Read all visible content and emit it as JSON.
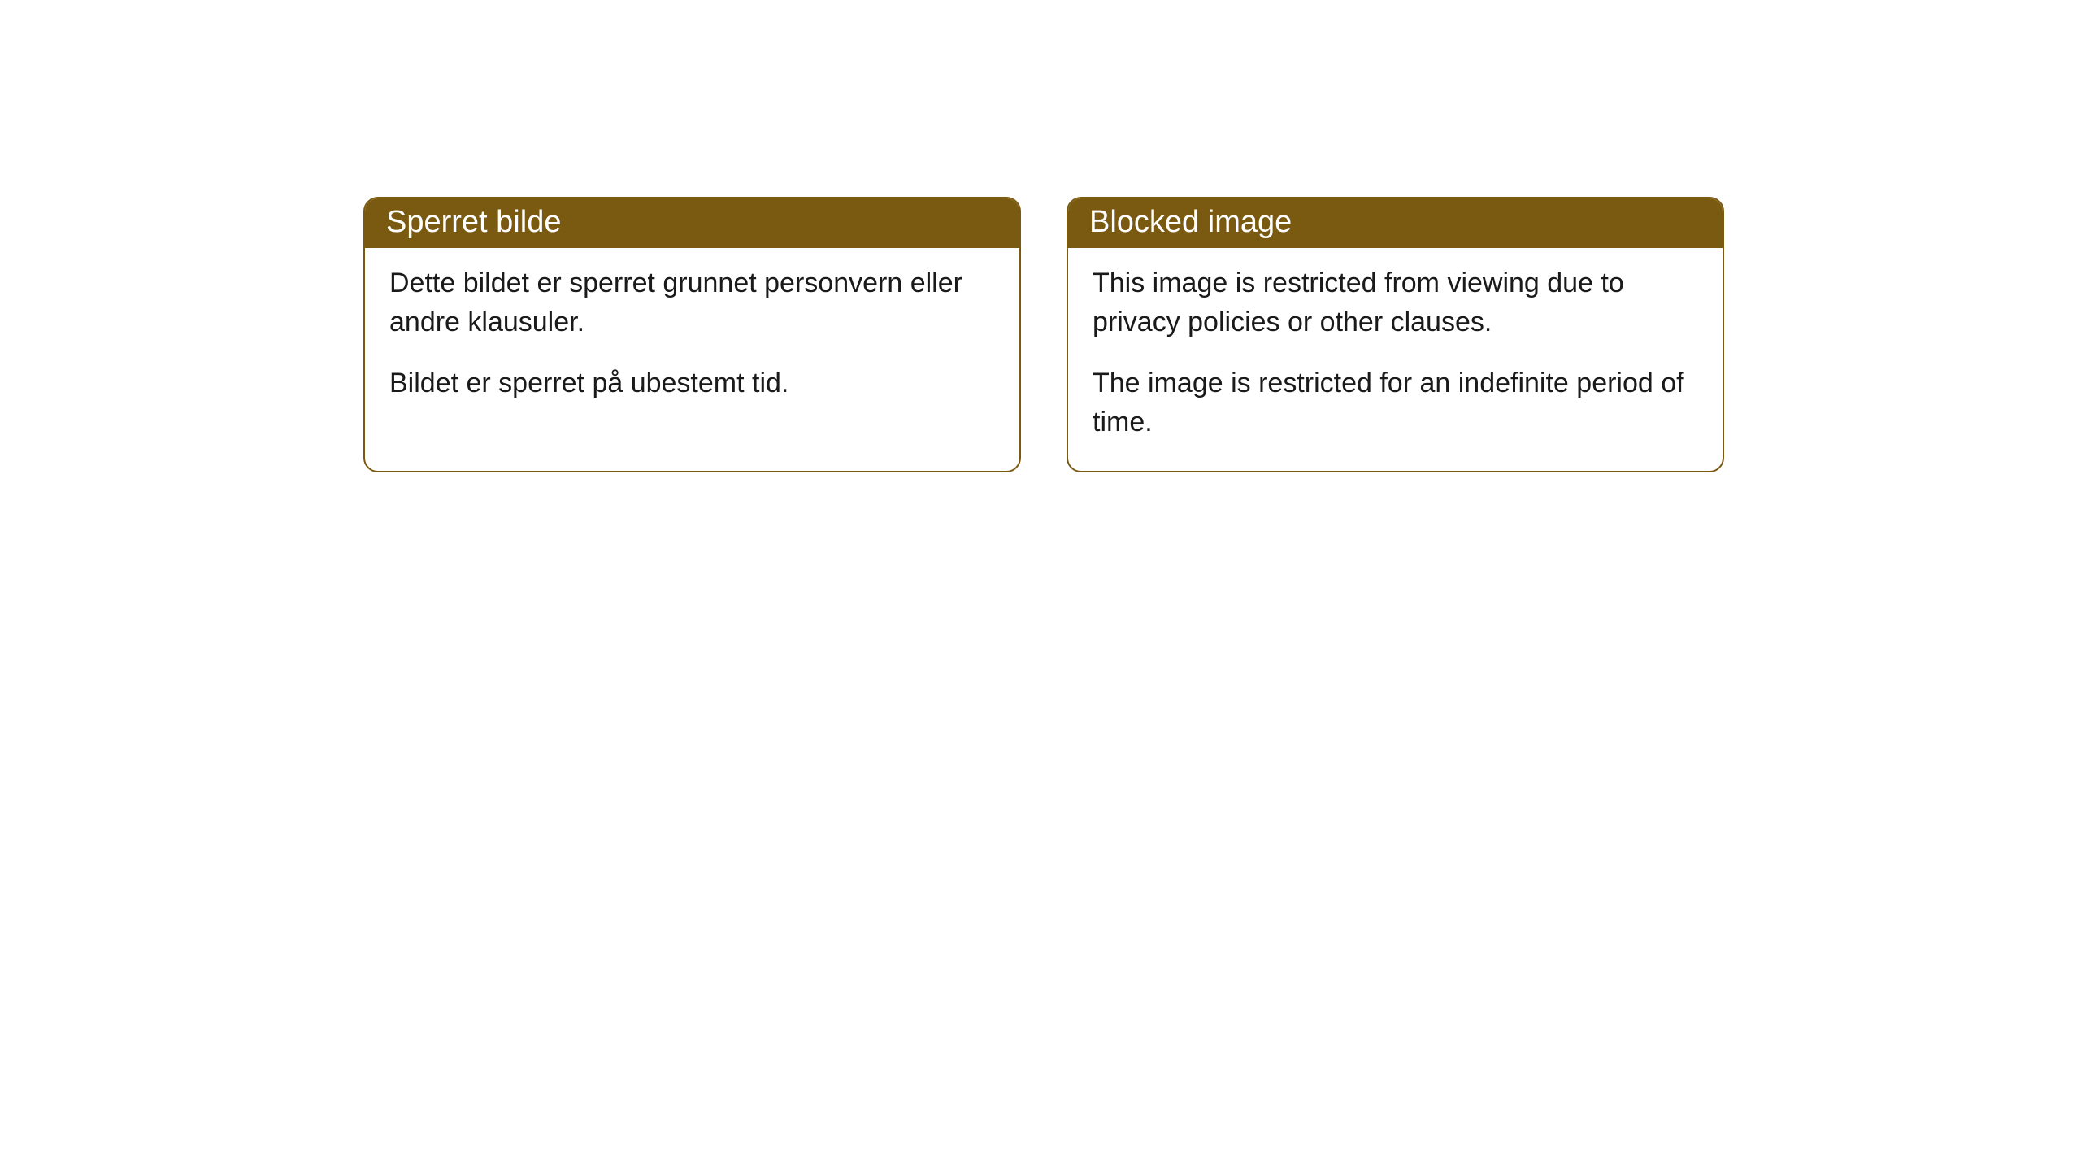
{
  "cards": [
    {
      "title": "Sperret bilde",
      "paragraph1": "Dette bildet er sperret grunnet personvern eller andre klausuler.",
      "paragraph2": "Bildet er sperret på ubestemt tid."
    },
    {
      "title": "Blocked image",
      "paragraph1": "This image is restricted from viewing due to privacy policies or other clauses.",
      "paragraph2": "The image is restricted for an indefinite period of time."
    }
  ],
  "styling": {
    "header_background": "#7a5a10",
    "header_text_color": "#ffffff",
    "border_color": "#7a5a10",
    "body_background": "#ffffff",
    "body_text_color": "#1a1a1a",
    "border_radius": 18,
    "title_fontsize": 38,
    "body_fontsize": 34
  }
}
